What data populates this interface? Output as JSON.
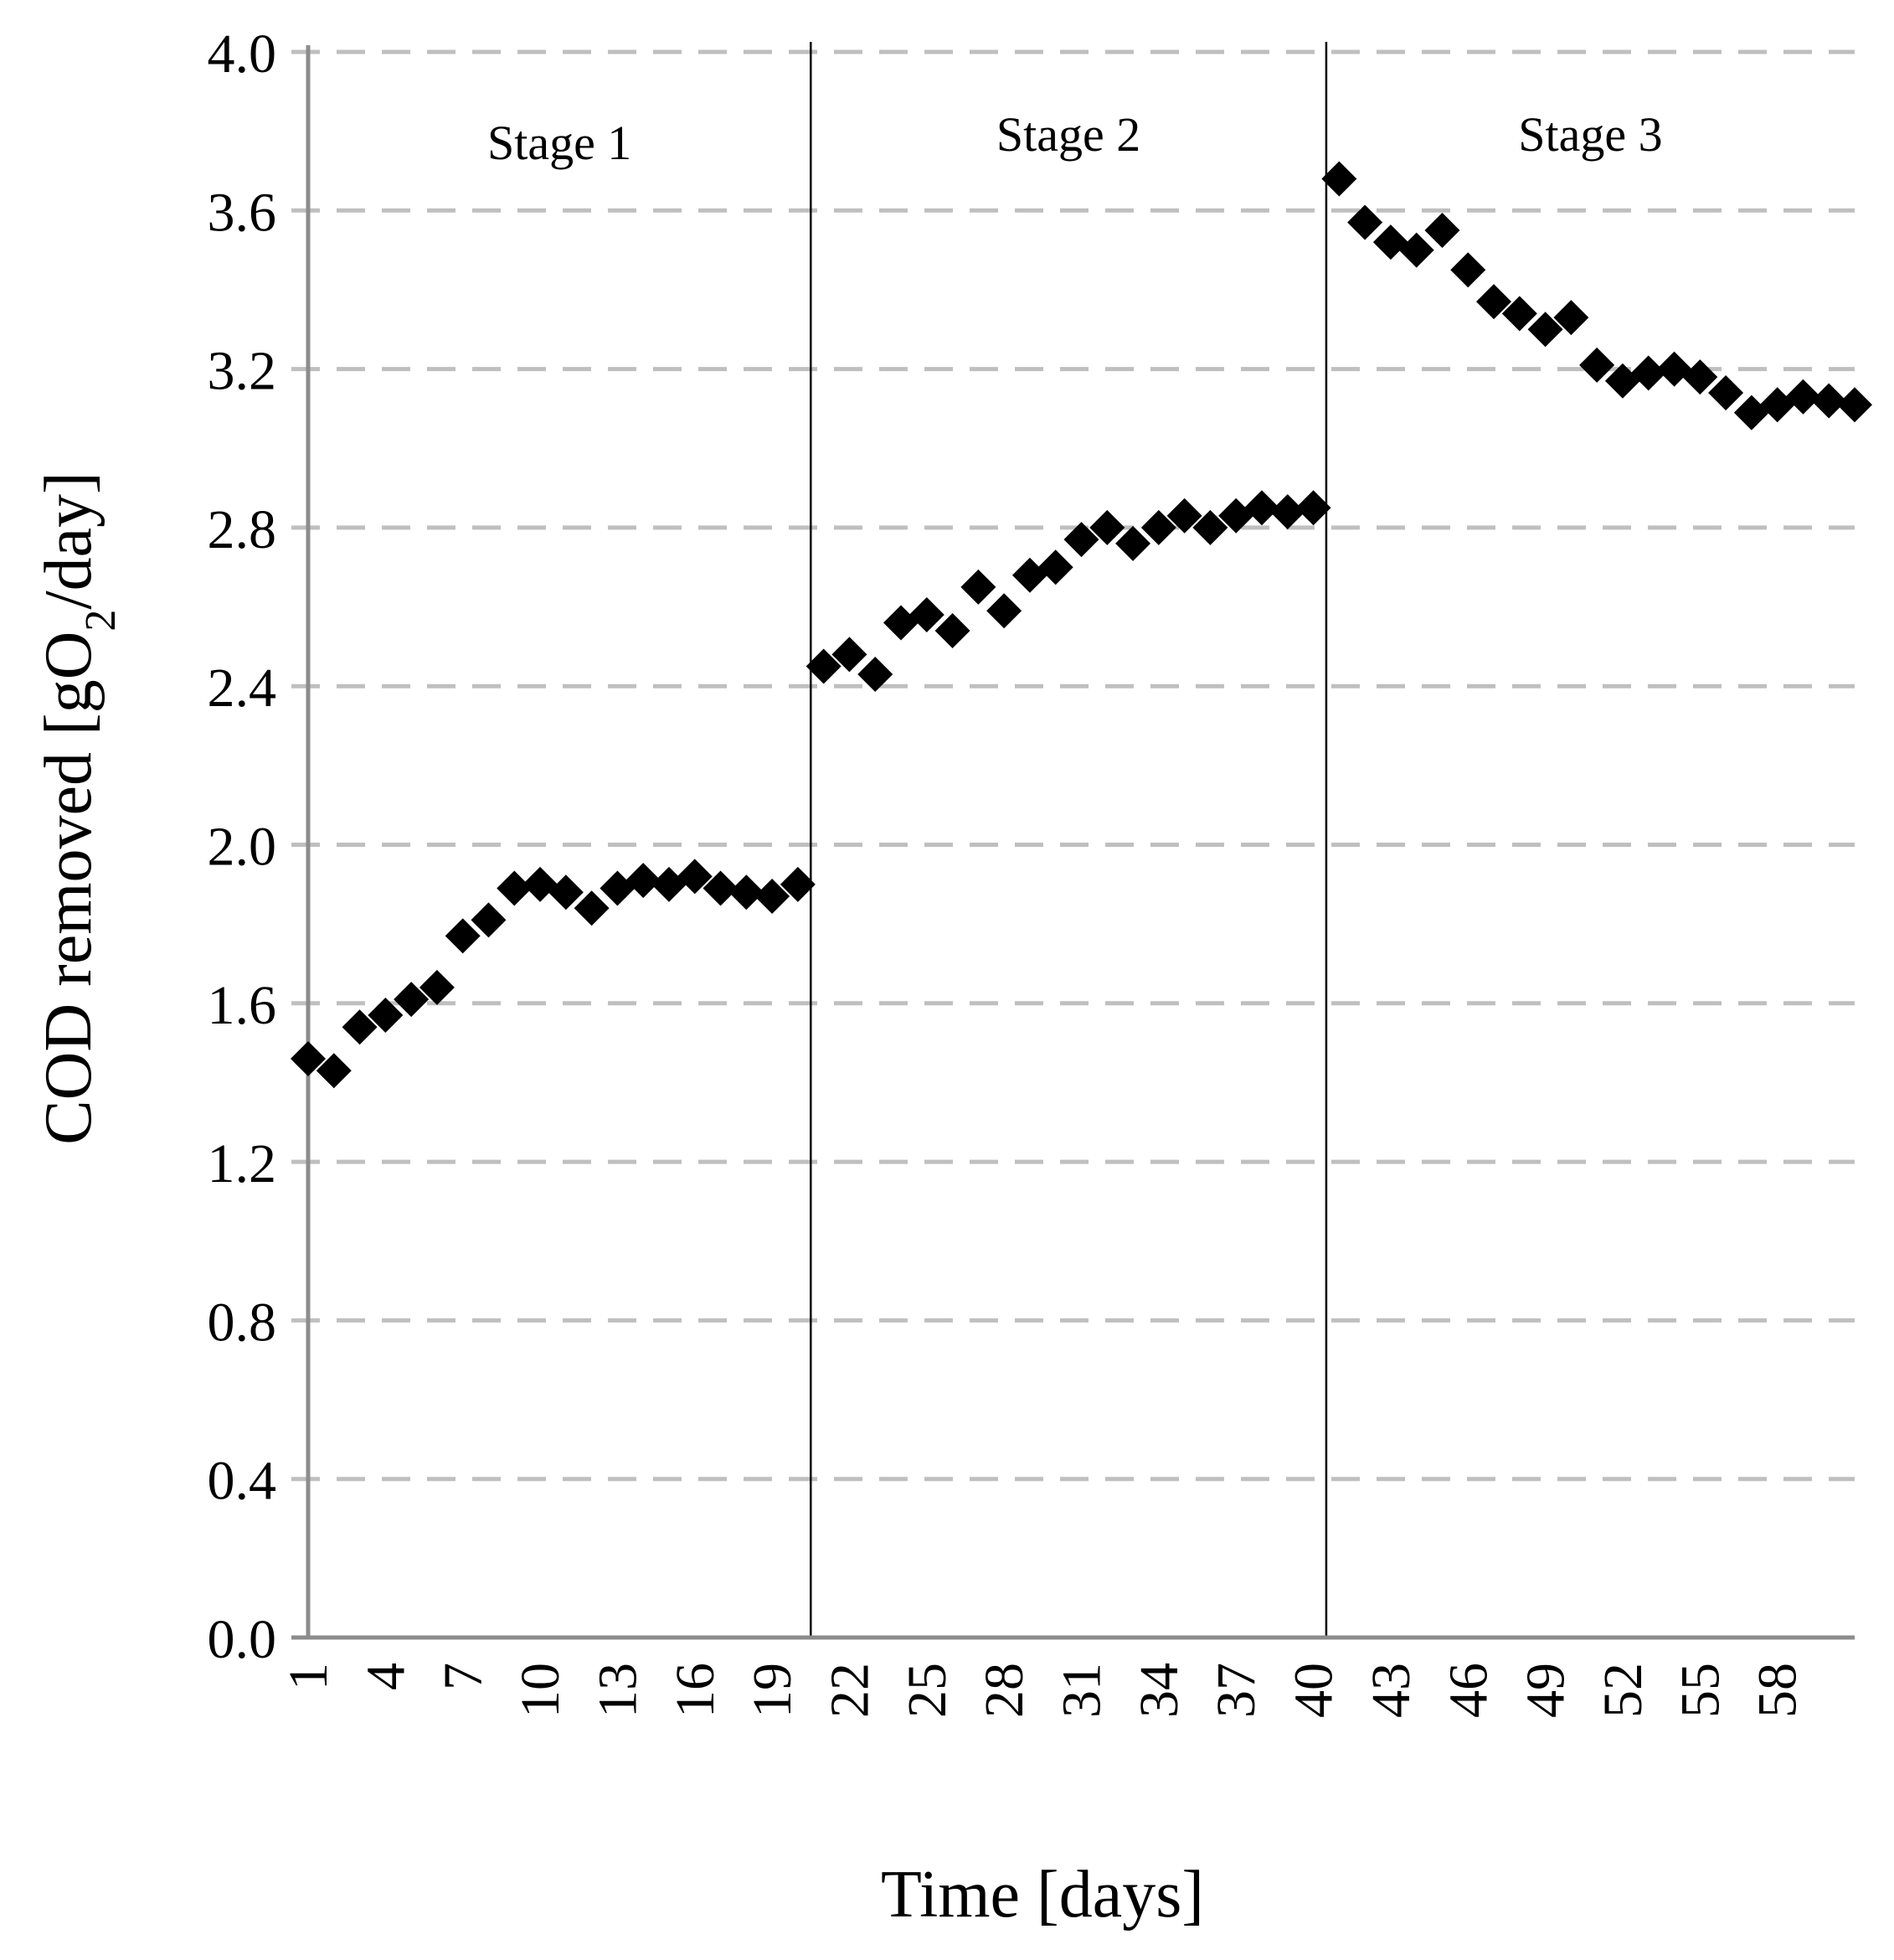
{
  "chart_data": {
    "type": "scatter",
    "xlabel": "Time [days]",
    "ylabel_main": "COD removed [gO",
    "ylabel_sub": "2",
    "ylabel_end": "/day]",
    "ylim": [
      0,
      4.0
    ],
    "yticks": [
      "0.0",
      "0.4",
      "0.8",
      "1.2",
      "1.6",
      "2.0",
      "2.4",
      "2.8",
      "3.2",
      "3.6",
      "4.0"
    ],
    "xlim": [
      1,
      61
    ],
    "xticks": [
      1,
      4,
      7,
      10,
      13,
      16,
      19,
      22,
      25,
      28,
      31,
      34,
      37,
      40,
      43,
      46,
      49,
      52,
      55,
      58
    ],
    "grid": "horizontal-dashed",
    "marker": "diamond",
    "marker_color": "#000000",
    "stages": [
      {
        "label": "Stage 1",
        "boundary_end": 20.5
      },
      {
        "label": "Stage 2",
        "boundary_end": 40.5
      },
      {
        "label": "Stage 3"
      }
    ],
    "x": [
      1,
      2,
      3,
      4,
      5,
      6,
      7,
      8,
      9,
      10,
      11,
      12,
      13,
      14,
      15,
      16,
      17,
      18,
      19,
      20,
      21,
      22,
      23,
      24,
      25,
      26,
      27,
      28,
      29,
      30,
      31,
      32,
      33,
      34,
      35,
      36,
      37,
      38,
      39,
      40,
      41,
      42,
      43,
      44,
      45,
      46,
      47,
      48,
      49,
      50,
      51,
      52,
      53,
      54,
      55,
      56,
      57,
      58,
      59,
      60,
      61
    ],
    "y": [
      1.46,
      1.43,
      1.54,
      1.57,
      1.61,
      1.64,
      1.77,
      1.81,
      1.89,
      1.9,
      1.88,
      1.84,
      1.89,
      1.91,
      1.9,
      1.92,
      1.89,
      1.88,
      1.87,
      1.9,
      2.45,
      2.48,
      2.43,
      2.56,
      2.58,
      2.54,
      2.65,
      2.59,
      2.68,
      2.7,
      2.77,
      2.8,
      2.76,
      2.8,
      2.83,
      2.8,
      2.83,
      2.85,
      2.84,
      2.85,
      3.68,
      3.57,
      3.52,
      3.5,
      3.55,
      3.45,
      3.37,
      3.34,
      3.3,
      3.33,
      3.21,
      3.17,
      3.19,
      3.2,
      3.18,
      3.14,
      3.09,
      3.11,
      3.13,
      3.12,
      3.11
    ]
  }
}
